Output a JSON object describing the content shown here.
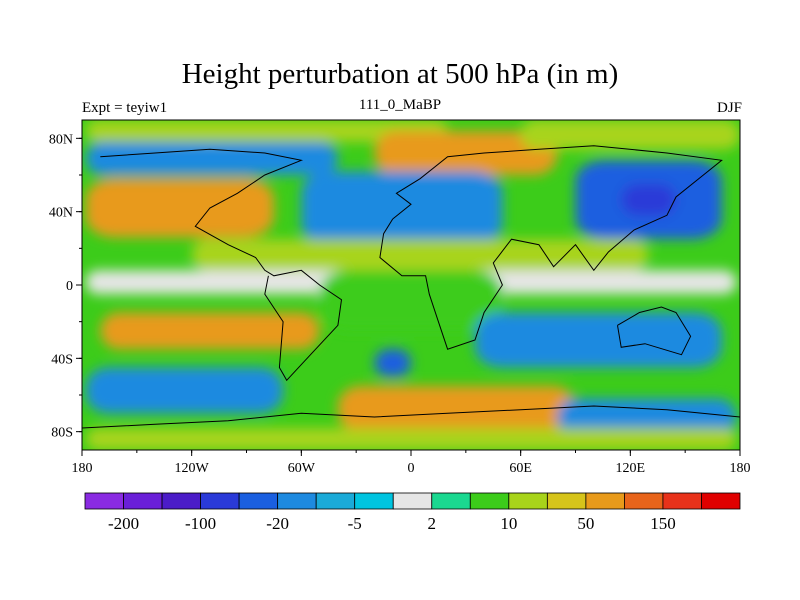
{
  "title": "Height perturbation at 500 hPa (in m)",
  "subtitle_left": "Expt = teyiw1",
  "subtitle_center": "111_0_MaBP",
  "subtitle_right": "DJF",
  "chart_data": {
    "type": "heatmap",
    "title": "Height perturbation at 500 hPa (in m)",
    "xlim": [
      -180,
      180
    ],
    "ylim": [
      -90,
      90
    ],
    "x_ticks": [
      {
        "value": -180,
        "label": "180"
      },
      {
        "value": -120,
        "label": "120W"
      },
      {
        "value": -60,
        "label": "60W"
      },
      {
        "value": 0,
        "label": "0"
      },
      {
        "value": 60,
        "label": "60E"
      },
      {
        "value": 120,
        "label": "120E"
      },
      {
        "value": 180,
        "label": "180"
      }
    ],
    "y_ticks": [
      {
        "value": 80,
        "label": "80N"
      },
      {
        "value": 40,
        "label": "40N"
      },
      {
        "value": 0,
        "label": "0"
      },
      {
        "value": -40,
        "label": "40S"
      },
      {
        "value": -80,
        "label": "80S"
      }
    ],
    "colorbar": {
      "colors": [
        "#8a2be2",
        "#6a1fd8",
        "#4b1cc8",
        "#2a3ad8",
        "#1a5fe0",
        "#1e8ae0",
        "#1aaad8",
        "#00c4e0",
        "#e6e6e6",
        "#1ad890",
        "#3ccc1a",
        "#a8d41a",
        "#d6c41a",
        "#e89a1a",
        "#e8641a",
        "#e8321a",
        "#e00000"
      ],
      "labels": [
        {
          "boundary": 1,
          "text": "-200"
        },
        {
          "boundary": 3,
          "text": "-100"
        },
        {
          "boundary": 5,
          "text": "-20"
        },
        {
          "boundary": 7,
          "text": "-5"
        },
        {
          "boundary": 9,
          "text": "2"
        },
        {
          "boundary": 11,
          "text": "10"
        },
        {
          "boundary": 13,
          "text": "50"
        },
        {
          "boundary": 15,
          "text": "150"
        }
      ]
    },
    "regions": [
      {
        "name": "band-80N-west-blue",
        "level": 5,
        "lon": [
          -178,
          -40
        ],
        "lat": [
          60,
          78
        ]
      },
      {
        "name": "band-60N-north-green",
        "level": 11,
        "lon": [
          -178,
          20
        ],
        "lat": [
          78,
          90
        ]
      },
      {
        "name": "yellow-arctic-east",
        "level": 13,
        "lon": [
          -20,
          80
        ],
        "lat": [
          60,
          84
        ]
      },
      {
        "name": "green-arctic-east",
        "level": 11,
        "lon": [
          60,
          180
        ],
        "lat": [
          74,
          90
        ]
      },
      {
        "name": "orange-40N-west",
        "level": 14,
        "lon": [
          -178,
          -90
        ],
        "lat": [
          32,
          52
        ]
      },
      {
        "name": "yellow-40N-west",
        "level": 13,
        "lon": [
          -178,
          -75
        ],
        "lat": [
          26,
          58
        ]
      },
      {
        "name": "blue-40N-central",
        "level": 5,
        "lon": [
          -60,
          50
        ],
        "lat": [
          22,
          62
        ]
      },
      {
        "name": "blue-40N-east",
        "level": 4,
        "lon": [
          90,
          170
        ],
        "lat": [
          25,
          68
        ]
      },
      {
        "name": "purple-40N-east",
        "level": 3,
        "lon": [
          115,
          145
        ],
        "lat": [
          38,
          55
        ]
      },
      {
        "name": "green-20N",
        "level": 11,
        "lon": [
          -120,
          130
        ],
        "lat": [
          8,
          25
        ]
      },
      {
        "name": "white-0",
        "level": 8,
        "lon": [
          -178,
          178
        ],
        "lat": [
          -5,
          8
        ]
      },
      {
        "name": "green-0-center",
        "level": 10,
        "lon": [
          -50,
          50
        ],
        "lat": [
          -25,
          8
        ]
      },
      {
        "name": "yellow-20S-west",
        "level": 13,
        "lon": [
          -170,
          -50
        ],
        "lat": [
          -35,
          -15
        ]
      },
      {
        "name": "blue-20S-east",
        "level": 5,
        "lon": [
          35,
          170
        ],
        "lat": [
          -45,
          -15
        ]
      },
      {
        "name": "blue-40S-west",
        "level": 5,
        "lon": [
          -178,
          -70
        ],
        "lat": [
          -70,
          -45
        ]
      },
      {
        "name": "blue-40S-dot",
        "level": 4,
        "lon": [
          -20,
          0
        ],
        "lat": [
          -50,
          -35
        ]
      },
      {
        "name": "yellow-60S-center",
        "level": 13,
        "lon": [
          -40,
          90
        ],
        "lat": [
          -80,
          -55
        ]
      },
      {
        "name": "blue-60S-east",
        "level": 5,
        "lon": [
          80,
          178
        ],
        "lat": [
          -82,
          -62
        ]
      },
      {
        "name": "green-80S",
        "level": 11,
        "lon": [
          -178,
          178
        ],
        "lat": [
          -90,
          -78
        ]
      }
    ]
  }
}
